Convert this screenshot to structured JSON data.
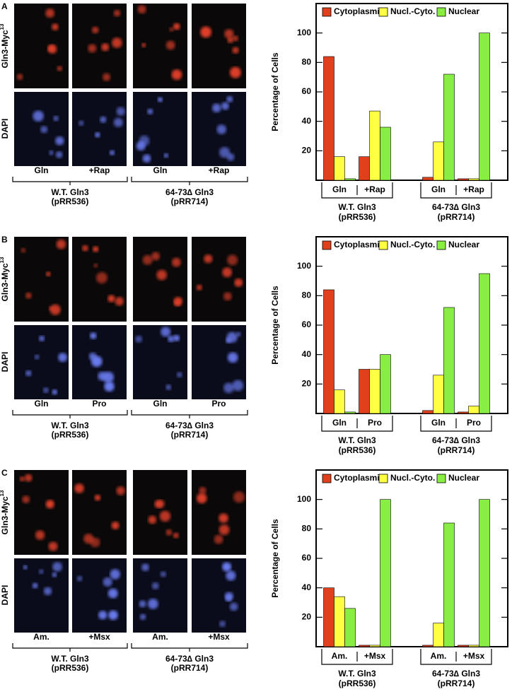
{
  "panels": [
    {
      "label": "A",
      "stain": "Gln3-Myc",
      "stain_sup": "13",
      "counterstain": "DAPI"
    },
    {
      "label": "B",
      "stain": "Gln3-Myc",
      "stain_sup": "13",
      "counterstain": "DAPI"
    },
    {
      "label": "C",
      "stain": "Gln3-Myc",
      "stain_sup": "13",
      "counterstain": "DAPI"
    }
  ],
  "chart_data": [
    {
      "type": "bar",
      "ylabel": "Percentage of Cells",
      "categories": [
        "Gln",
        "+Rap",
        "Gln",
        "+Rap"
      ],
      "groups": [
        {
          "name": "W.T. Gln3",
          "plasmid": "(pRR536)"
        },
        {
          "name": "64-73∆ Gln3",
          "plasmid": "(pRR714)"
        }
      ],
      "series": [
        {
          "name": "Cytoplasmic",
          "color": "#e0401c",
          "values": [
            84,
            16,
            2,
            1
          ]
        },
        {
          "name": "Nucl.-Cyto.",
          "color": "#ffff44",
          "values": [
            16,
            47,
            26,
            1
          ]
        },
        {
          "name": "Nuclear",
          "color": "#88ee44",
          "values": [
            1,
            36,
            72,
            100
          ]
        }
      ],
      "ylim": [
        0,
        120
      ],
      "yticks": [
        20,
        40,
        60,
        80,
        100
      ]
    },
    {
      "type": "bar",
      "ylabel": "Percentage of Cells",
      "categories": [
        "Gln",
        "Pro",
        "Gln",
        "Pro"
      ],
      "groups": [
        {
          "name": "W.T. Gln3",
          "plasmid": "(pRR536)"
        },
        {
          "name": "64-73∆ Gln3",
          "plasmid": "(pRR714)"
        }
      ],
      "series": [
        {
          "name": "Cytoplasmic",
          "color": "#e0401c",
          "values": [
            84,
            30,
            2,
            1
          ]
        },
        {
          "name": "Nucl.-Cyto.",
          "color": "#ffff44",
          "values": [
            16,
            30,
            26,
            5
          ]
        },
        {
          "name": "Nuclear",
          "color": "#88ee44",
          "values": [
            1,
            40,
            72,
            95
          ]
        }
      ],
      "ylim": [
        0,
        120
      ],
      "yticks": [
        20,
        40,
        60,
        80,
        100
      ]
    },
    {
      "type": "bar",
      "ylabel": "Percentage of Cells",
      "categories": [
        "Am.",
        "+Msx",
        "Am.",
        "+Msx"
      ],
      "groups": [
        {
          "name": "W.T. Gln3",
          "plasmid": "(pRR536)"
        },
        {
          "name": "64-73∆ Gln3",
          "plasmid": "(pRR714)"
        }
      ],
      "series": [
        {
          "name": "Cytoplasmic",
          "color": "#e0401c",
          "values": [
            40,
            1,
            1,
            1
          ]
        },
        {
          "name": "Nucl.-Cyto.",
          "color": "#ffff44",
          "values": [
            34,
            1,
            16,
            1
          ]
        },
        {
          "name": "Nuclear",
          "color": "#88ee44",
          "values": [
            26,
            100,
            84,
            100
          ]
        }
      ],
      "ylim": [
        0,
        120
      ],
      "yticks": [
        20,
        40,
        60,
        80,
        100
      ]
    }
  ]
}
